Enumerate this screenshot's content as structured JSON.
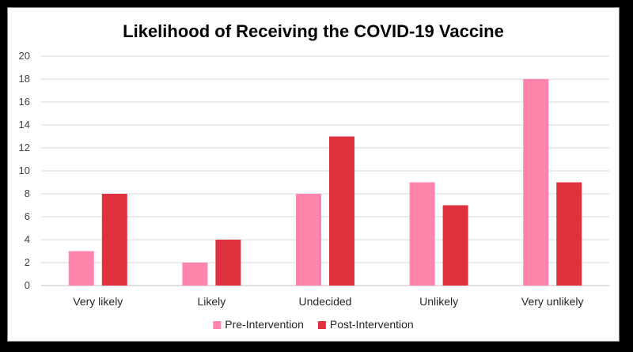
{
  "chart_data": {
    "type": "bar",
    "title": "Likelihood of Receiving the COVID-19 Vaccine",
    "categories": [
      "Very likely",
      "Likely",
      "Undecided",
      "Unlikely",
      "Very unlikely"
    ],
    "series": [
      {
        "name": "Pre-Intervention",
        "values": [
          3,
          2,
          8,
          9,
          18
        ],
        "color": "#ff85aa"
      },
      {
        "name": "Post-Intervention",
        "values": [
          8,
          4,
          13,
          7,
          9
        ],
        "color": "#e0323e"
      }
    ],
    "xlabel": "",
    "ylabel": "",
    "ylim": [
      0,
      20
    ],
    "yticks": [
      0,
      2,
      4,
      6,
      8,
      10,
      12,
      14,
      16,
      18,
      20
    ],
    "grid": true,
    "legend_position": "bottom"
  }
}
